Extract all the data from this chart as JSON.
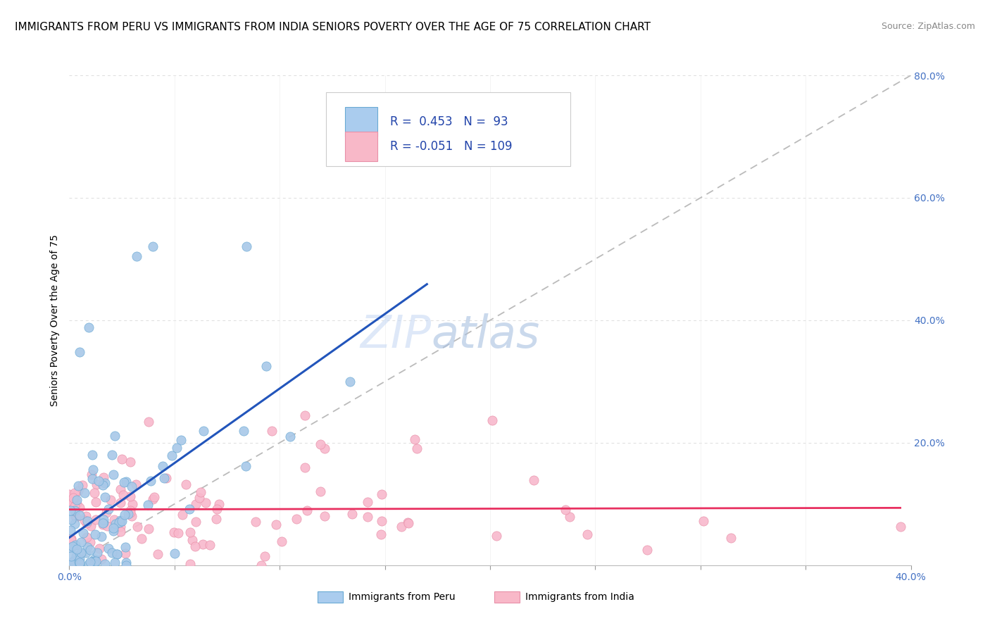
{
  "title": "IMMIGRANTS FROM PERU VS IMMIGRANTS FROM INDIA SENIORS POVERTY OVER THE AGE OF 75 CORRELATION CHART",
  "source": "Source: ZipAtlas.com",
  "ylabel": "Seniors Poverty Over the Age of 75",
  "xlim": [
    0.0,
    0.4
  ],
  "ylim": [
    0.0,
    0.8
  ],
  "peru_R": 0.453,
  "peru_N": 93,
  "india_R": -0.051,
  "india_N": 109,
  "peru_dot_color": "#a8c8e8",
  "peru_dot_edge": "#6aaad4",
  "india_dot_color": "#f8b8cc",
  "india_dot_edge": "#e890a8",
  "peru_line_color": "#2255bb",
  "india_line_color": "#e83060",
  "ref_line_color": "#bbbbbb",
  "legend_color_peru": "#aaccee",
  "legend_color_india": "#f8b8c8",
  "watermark_zip": "ZIP",
  "watermark_atlas": "atlas",
  "watermark_color_zip": "#c8daf0",
  "watermark_color_atlas": "#b0c8e8",
  "title_fontsize": 11,
  "axis_label_fontsize": 10,
  "tick_fontsize": 10,
  "legend_fontsize": 12
}
